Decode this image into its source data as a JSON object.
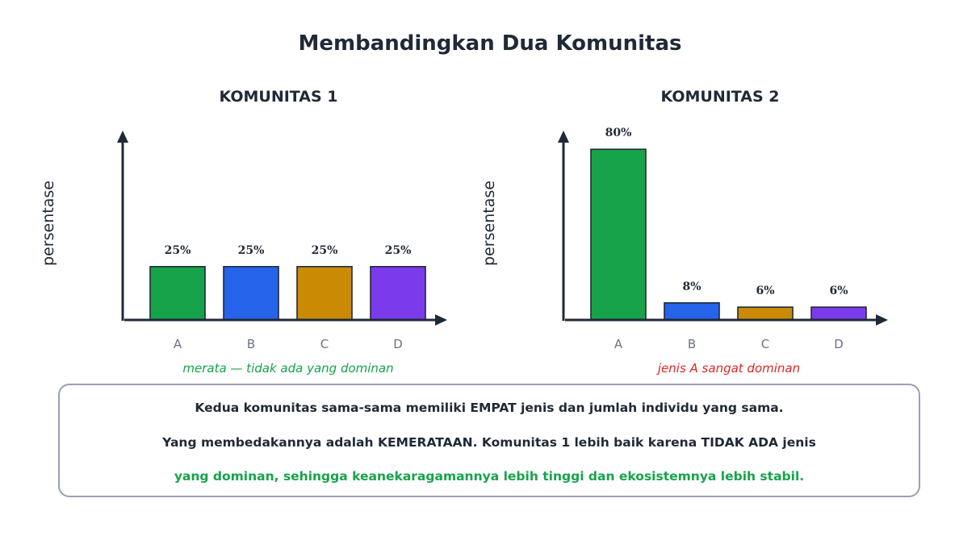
{
  "title": "Membandingkan Dua Komunitas",
  "colors": {
    "axis": "#1f2937",
    "tick_text": "#6b7280",
    "bar_stroke": "#1f2937",
    "note_good": "#16a34a",
    "note_bad": "#dc2626",
    "A": "#16a34a",
    "B": "#2563eb",
    "C": "#ca8a04",
    "D": "#7c3aed"
  },
  "chart_data": [
    {
      "type": "bar",
      "title": "KOMUNITAS 1",
      "ylabel": "persentase",
      "xlabel": "",
      "categories": [
        "A",
        "B",
        "C",
        "D"
      ],
      "values": [
        25,
        25,
        25,
        25
      ],
      "value_labels": [
        "25%",
        "25%",
        "25%",
        "25%"
      ],
      "ylim": [
        0,
        85
      ],
      "grid": false,
      "note": "merata — tidak ada yang dominan"
    },
    {
      "type": "bar",
      "title": "KOMUNITAS 2",
      "ylabel": "persentase",
      "xlabel": "",
      "categories": [
        "A",
        "B",
        "C",
        "D"
      ],
      "values": [
        80,
        8,
        6,
        6
      ],
      "value_labels": [
        "80%",
        "8%",
        "6%",
        "6%"
      ],
      "ylim": [
        0,
        85
      ],
      "grid": false,
      "note": "jenis A sangat dominan"
    }
  ],
  "summary": {
    "line1": "Kedua komunitas sama-sama memiliki EMPAT jenis dan jumlah individu yang sama.",
    "line2": "Yang membedakannya adalah KEMERATAAN. Komunitas 1 lebih baik karena TIDAK ADA jenis",
    "line3": "yang dominan, sehingga keanekaragamannya lebih tinggi dan ekosistemnya lebih stabil."
  }
}
